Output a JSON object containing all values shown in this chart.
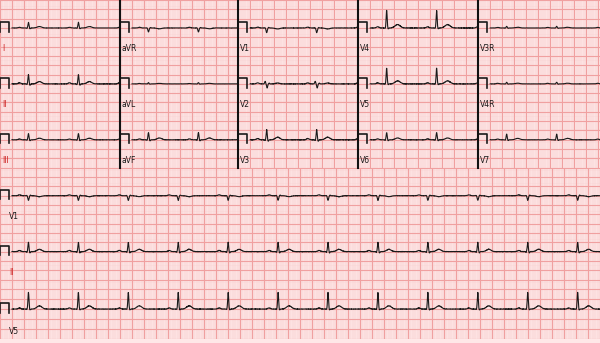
{
  "bg_color": "#FFE8E8",
  "grid_major_color": "#F0A0A0",
  "grid_minor_color": "#F8D0D0",
  "ecg_color": "#1a1a1a",
  "figsize": [
    6.0,
    3.43
  ],
  "dpi": 100,
  "lead_labels_row1": [
    "I",
    "aVR",
    "V1",
    "V4",
    "V3R"
  ],
  "lead_labels_row2": [
    "II",
    "aVL",
    "V2",
    "V5",
    "V4R"
  ],
  "lead_labels_row3": [
    "III",
    "aVF",
    "V3",
    "V6",
    "V7"
  ],
  "lead_labels_row4": [
    "V1"
  ],
  "lead_labels_row5": [
    "II"
  ],
  "lead_labels_row6": [
    "V5"
  ],
  "label_color_limb": "#CC2222",
  "label_color_precordial": "#1a1a1a"
}
